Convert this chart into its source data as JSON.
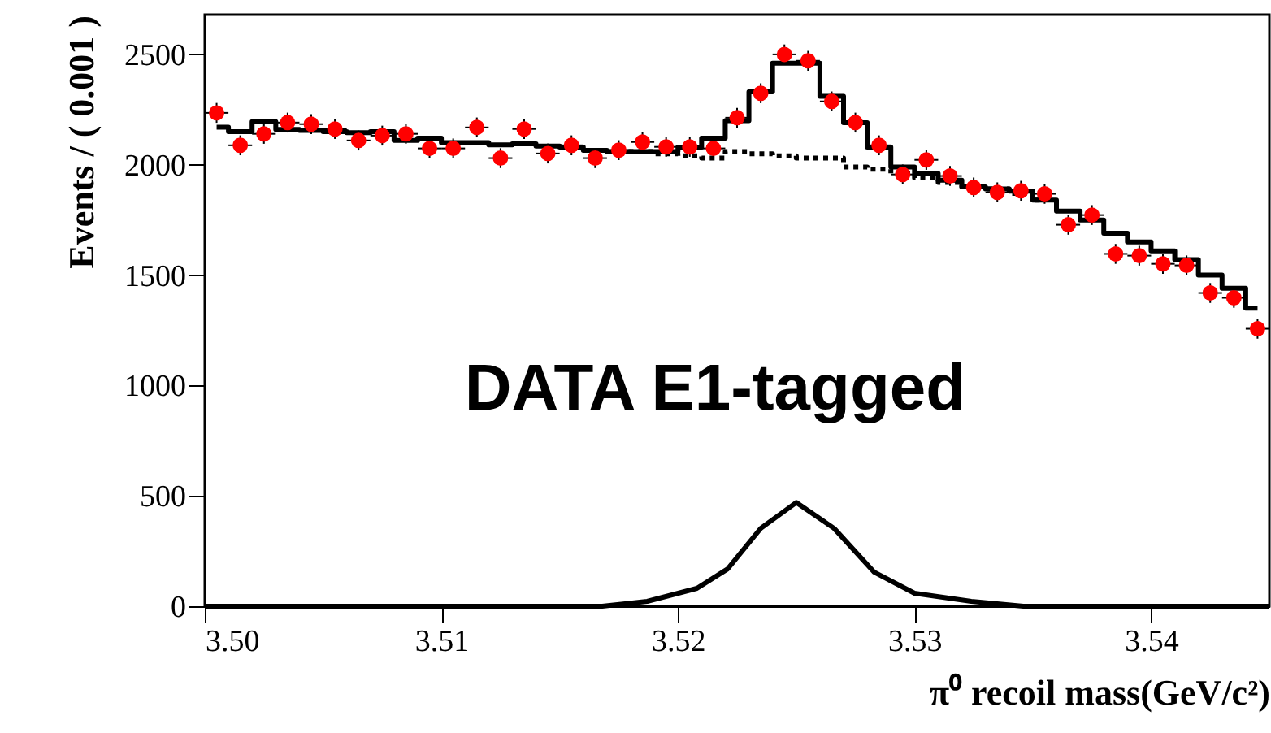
{
  "chart_data": {
    "type": "scatter",
    "xlabel": "π⁰ recoil mass(GeV/c²)",
    "ylabel": "Events / ( 0.001 )",
    "annotations": [
      "DATA  E1-tagged"
    ],
    "xlim": [
      3.5,
      3.545
    ],
    "ylim": [
      0,
      2680
    ],
    "xticks": [
      {
        "value": 3.5,
        "label": "3.50"
      },
      3.51,
      3.52,
      3.53,
      3.54
    ],
    "yticks": [
      0,
      500,
      1000,
      1500,
      2000,
      2500
    ],
    "grid": false,
    "x": [
      3.5005,
      3.5015,
      3.5025,
      3.5035,
      3.5045,
      3.5055,
      3.5065,
      3.5075,
      3.5085,
      3.5095,
      3.5105,
      3.5115,
      3.5125,
      3.5135,
      3.5145,
      3.5155,
      3.5165,
      3.5175,
      3.5185,
      3.5195,
      3.5205,
      3.5215,
      3.5225,
      3.5235,
      3.5245,
      3.5255,
      3.5265,
      3.5275,
      3.5285,
      3.5295,
      3.5305,
      3.5315,
      3.5325,
      3.5335,
      3.5345,
      3.5355,
      3.5365,
      3.5375,
      3.5385,
      3.5395,
      3.5405,
      3.5415,
      3.5425,
      3.5435,
      3.5445
    ],
    "series": [
      {
        "type": "scatter",
        "color": "#ff0000",
        "marker": "circle",
        "values": [
          2235,
          2088,
          2140,
          2191,
          2184,
          2162,
          2110,
          2132,
          2140,
          2074,
          2074,
          2169,
          2030,
          2162,
          2051,
          2088,
          2030,
          2066,
          2103,
          2081,
          2081,
          2074,
          2213,
          2324,
          2500,
          2471,
          2287,
          2191,
          2088,
          1956,
          2022,
          1949,
          1897,
          1875,
          1882,
          1868,
          1728,
          1772,
          1596,
          1588,
          1551,
          1544,
          1419,
          1397,
          1257
        ],
        "errors": [
          45,
          45,
          45,
          45,
          45,
          45,
          45,
          45,
          45,
          45,
          45,
          45,
          45,
          45,
          45,
          45,
          45,
          45,
          45,
          45,
          45,
          45,
          45,
          45,
          45,
          45,
          45,
          45,
          45,
          45,
          45,
          45,
          45,
          45,
          45,
          45,
          45,
          45,
          45,
          45,
          45,
          45,
          45,
          45,
          45
        ],
        "xerrors": [
          0.0005,
          0.0005,
          0.0005,
          0.0005,
          0.0005,
          0.0005,
          0.0005,
          0.0005,
          0.0005,
          0.0005,
          0.0005,
          0.0005,
          0.0005,
          0.0005,
          0.0005,
          0.0005,
          0.0005,
          0.0005,
          0.0005,
          0.0005,
          0.0005,
          0.0005,
          0.0005,
          0.0005,
          0.0005,
          0.0005,
          0.0005,
          0.0005,
          0.0005,
          0.0005,
          0.0005,
          0.0005,
          0.0005,
          0.0005,
          0.0005,
          0.0005,
          0.0005,
          0.0005,
          0.0005,
          0.0005,
          0.0005,
          0.0005,
          0.0005,
          0.0005,
          0.0005
        ]
      },
      {
        "type": "step",
        "color": "#000000",
        "line_style": "solid",
        "values": [
          2170,
          2150,
          2195,
          2160,
          2155,
          2150,
          2145,
          2150,
          2110,
          2120,
          2100,
          2100,
          2090,
          2095,
          2085,
          2080,
          2065,
          2060,
          2060,
          2060,
          2080,
          2120,
          2200,
          2330,
          2460,
          2460,
          2310,
          2190,
          2080,
          1990,
          1960,
          1930,
          1900,
          1890,
          1880,
          1840,
          1790,
          1750,
          1690,
          1650,
          1610,
          1570,
          1500,
          1440,
          1350
        ]
      },
      {
        "type": "step",
        "color": "#000000",
        "line_style": "dotted",
        "values": [
          null,
          null,
          null,
          null,
          null,
          null,
          null,
          null,
          null,
          null,
          null,
          null,
          null,
          null,
          null,
          null,
          null,
          2060,
          2060,
          2050,
          2040,
          2030,
          2060,
          2050,
          2040,
          2030,
          2030,
          1990,
          1980,
          1960,
          1940,
          1920,
          1900,
          1890,
          1870,
          1840,
          null,
          null,
          null,
          null,
          null,
          null,
          null,
          null,
          null
        ]
      },
      {
        "type": "line",
        "color": "#000000",
        "line_style": "solid",
        "x": [
          3.5,
          3.5168,
          3.5187,
          3.5208,
          3.5221,
          3.5235,
          3.525,
          3.5266,
          3.5283,
          3.53,
          3.5324,
          3.5346,
          3.545
        ],
        "values": [
          0,
          0,
          22,
          81,
          169,
          353,
          470,
          353,
          154,
          59,
          22,
          0,
          0
        ]
      }
    ]
  }
}
